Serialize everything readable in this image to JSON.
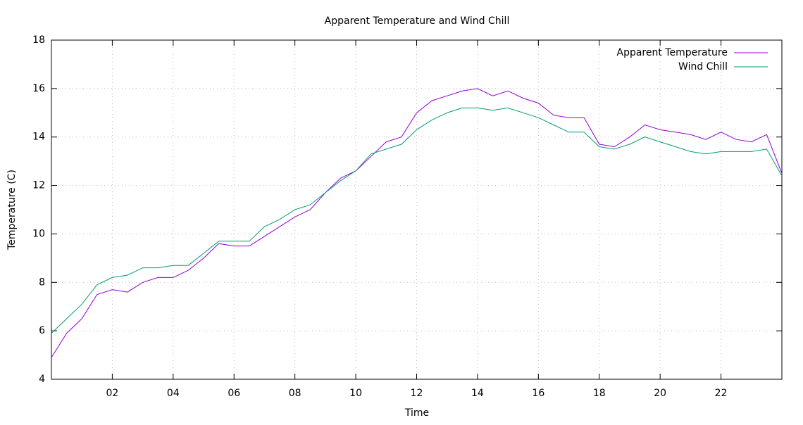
{
  "chart_data": {
    "type": "line",
    "title": "Apparent Temperature and Wind Chill",
    "xlabel": "Time",
    "ylabel": "Temperature (C)",
    "x": [
      0,
      0.5,
      1,
      1.5,
      2,
      2.5,
      3,
      3.5,
      4,
      4.5,
      5,
      5.5,
      6,
      6.5,
      7,
      7.5,
      8,
      8.5,
      9,
      9.5,
      10,
      10.5,
      11,
      11.5,
      12,
      12.5,
      13,
      13.5,
      14,
      14.5,
      15,
      15.5,
      16,
      16.5,
      17,
      17.5,
      18,
      18.5,
      19,
      19.5,
      20,
      20.5,
      21,
      21.5,
      22,
      22.5,
      23,
      23.5,
      24
    ],
    "series": [
      {
        "name": "Apparent Temperature",
        "color": "#9400d3",
        "values": [
          4.9,
          5.9,
          6.5,
          7.5,
          7.7,
          7.6,
          8.0,
          8.2,
          8.2,
          8.5,
          9.0,
          9.6,
          9.5,
          9.5,
          9.9,
          10.3,
          10.7,
          11.0,
          11.7,
          12.3,
          12.6,
          13.2,
          13.8,
          14.0,
          15.0,
          15.5,
          15.7,
          15.9,
          16.0,
          15.7,
          15.9,
          15.6,
          15.4,
          14.9,
          14.8,
          14.8,
          13.7,
          13.6,
          14.0,
          14.5,
          14.3,
          14.2,
          14.1,
          13.9,
          14.2,
          13.9,
          13.8,
          14.1,
          12.5
        ]
      },
      {
        "name": "Wind Chill",
        "color": "#009e73",
        "values": [
          5.9,
          6.5,
          7.1,
          7.9,
          8.2,
          8.3,
          8.6,
          8.6,
          8.7,
          8.7,
          9.2,
          9.7,
          9.7,
          9.7,
          10.3,
          10.6,
          11.0,
          11.2,
          11.7,
          12.2,
          12.6,
          13.3,
          13.5,
          13.7,
          14.3,
          14.7,
          15.0,
          15.2,
          15.2,
          15.1,
          15.2,
          15.0,
          14.8,
          14.5,
          14.2,
          14.2,
          13.6,
          13.5,
          13.7,
          14.0,
          13.8,
          13.6,
          13.4,
          13.3,
          13.4,
          13.4,
          13.4,
          13.5,
          12.4
        ]
      }
    ],
    "xlim": [
      0,
      24
    ],
    "xticks": [
      {
        "value": 2,
        "label": "02"
      },
      {
        "value": 4,
        "label": "04"
      },
      {
        "value": 6,
        "label": "06"
      },
      {
        "value": 8,
        "label": "08"
      },
      {
        "value": 10,
        "label": "10"
      },
      {
        "value": 12,
        "label": "12"
      },
      {
        "value": 14,
        "label": "14"
      },
      {
        "value": 16,
        "label": "16"
      },
      {
        "value": 18,
        "label": "18"
      },
      {
        "value": 20,
        "label": "20"
      },
      {
        "value": 22,
        "label": "22"
      }
    ],
    "ylim": [
      4,
      18
    ],
    "yticks": [
      4,
      6,
      8,
      10,
      12,
      14,
      16,
      18
    ],
    "grid": true,
    "legend": "top-right"
  }
}
